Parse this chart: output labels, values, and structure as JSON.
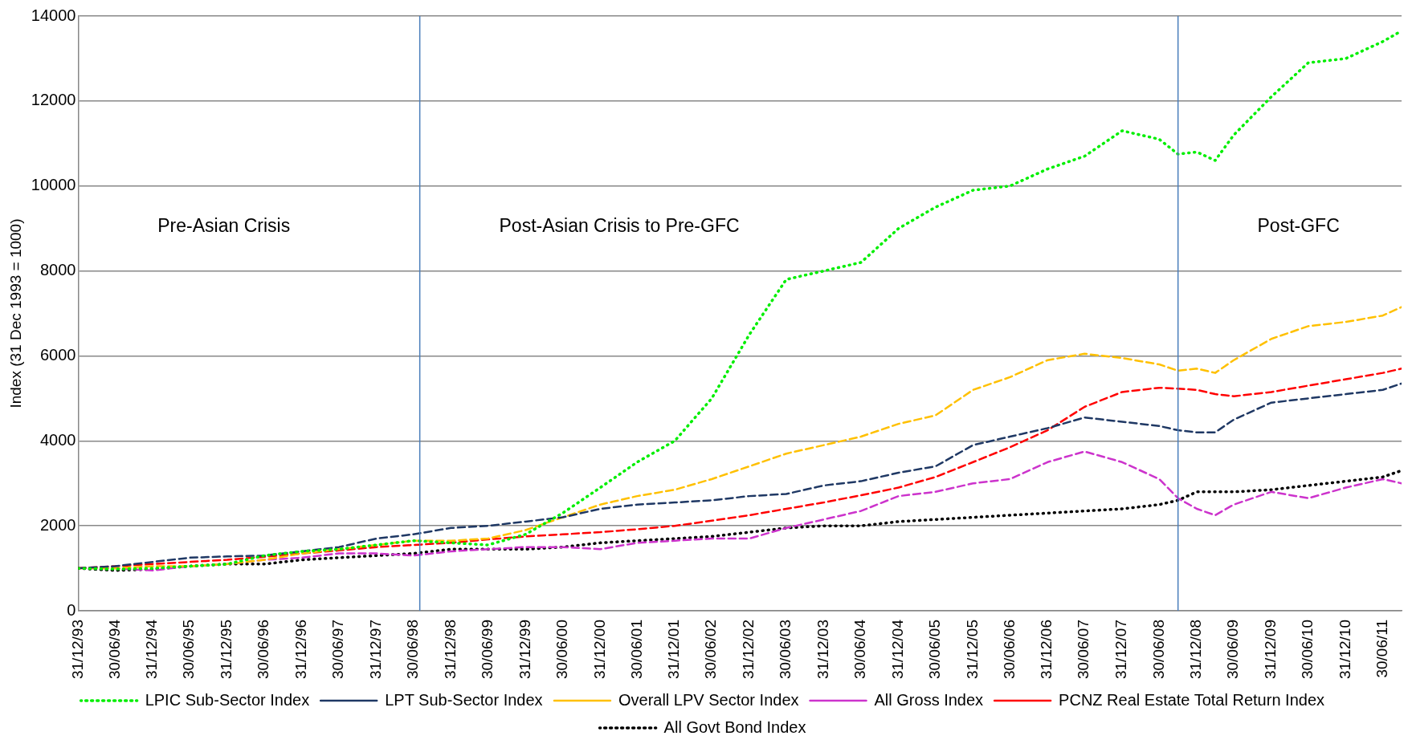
{
  "chart_data": {
    "type": "line",
    "ylabel": "Index (31 Dec 1993 = 1000)",
    "x": [
      "1993-12-31",
      "1994-06-30",
      "1994-12-31",
      "1995-06-30",
      "1995-12-31",
      "1996-06-30",
      "1996-12-31",
      "1997-06-30",
      "1997-12-31",
      "1998-06-30",
      "1998-12-31",
      "1999-06-30",
      "1999-12-31",
      "2000-06-30",
      "2000-12-31",
      "2001-06-30",
      "2001-12-31",
      "2002-06-30",
      "2002-12-31",
      "2003-06-30",
      "2003-12-31",
      "2004-06-30",
      "2004-12-31",
      "2005-06-30",
      "2005-12-31",
      "2006-06-30",
      "2006-12-31",
      "2007-06-30",
      "2007-12-31",
      "2008-06-30",
      "2008-09-30",
      "2008-12-31",
      "2009-03-31",
      "2009-06-30",
      "2009-12-31",
      "2010-06-30",
      "2010-12-31",
      "2011-06-30",
      "2011-09-30"
    ],
    "series": [
      {
        "name": "LPIC Sub-Sector Index",
        "color": "#00ee00",
        "line_style": "dotted",
        "values": [
          1000,
          980,
          1000,
          1050,
          1100,
          1300,
          1400,
          1450,
          1550,
          1650,
          1600,
          1550,
          1800,
          2300,
          2900,
          3500,
          4000,
          5000,
          6500,
          7800,
          8000,
          8200,
          9000,
          9500,
          9900,
          10000,
          10400,
          10700,
          11300,
          11100,
          10750,
          10800,
          10600,
          11200,
          12100,
          12900,
          13000,
          13400,
          13650
        ]
      },
      {
        "name": "LPT Sub-Sector Index",
        "color": "#1f3864",
        "line_style": "dashed",
        "values": [
          1000,
          1050,
          1150,
          1250,
          1280,
          1300,
          1400,
          1500,
          1700,
          1800,
          1950,
          2000,
          2100,
          2200,
          2400,
          2500,
          2550,
          2600,
          2700,
          2750,
          2950,
          3050,
          3250,
          3400,
          3900,
          4100,
          4300,
          4550,
          4450,
          4350,
          4250,
          4200,
          4200,
          4500,
          4900,
          5000,
          5100,
          5200,
          5350
        ]
      },
      {
        "name": "Overall LPV Sector Index",
        "color": "#ffc000",
        "line_style": "dashed",
        "values": [
          1000,
          1000,
          1050,
          1050,
          1100,
          1200,
          1350,
          1450,
          1550,
          1650,
          1650,
          1700,
          1900,
          2200,
          2500,
          2700,
          2850,
          3100,
          3400,
          3700,
          3900,
          4100,
          4400,
          4600,
          5200,
          5500,
          5900,
          6050,
          5950,
          5800,
          5650,
          5700,
          5600,
          5900,
          6400,
          6700,
          6800,
          6950,
          7150
        ]
      },
      {
        "name": "All Gross Index",
        "color": "#cc33cc",
        "line_style": "dashed",
        "values": [
          1000,
          1000,
          950,
          1050,
          1100,
          1200,
          1250,
          1350,
          1350,
          1300,
          1400,
          1450,
          1500,
          1500,
          1450,
          1600,
          1650,
          1700,
          1700,
          1950,
          2150,
          2350,
          2700,
          2800,
          3000,
          3100,
          3500,
          3750,
          3500,
          3100,
          2650,
          2400,
          2250,
          2500,
          2800,
          2650,
          2900,
          3100,
          3000
        ]
      },
      {
        "name": "PCNZ Real Estate Total Return Index",
        "color": "#ff0000",
        "line_style": "dashed",
        "values": [
          1000,
          1050,
          1100,
          1150,
          1200,
          1270,
          1350,
          1420,
          1500,
          1550,
          1600,
          1680,
          1750,
          1800,
          1850,
          1920,
          2000,
          2120,
          2250,
          2400,
          2550,
          2720,
          2900,
          3150,
          3500,
          3850,
          4250,
          4800,
          5150,
          5250,
          5230,
          5200,
          5100,
          5050,
          5150,
          5300,
          5450,
          5600,
          5700
        ]
      },
      {
        "name": "All Govt Bond Index",
        "color": "#000000",
        "line_style": "dotted",
        "values": [
          1000,
          950,
          980,
          1050,
          1100,
          1100,
          1200,
          1250,
          1300,
          1350,
          1450,
          1450,
          1450,
          1500,
          1600,
          1650,
          1700,
          1750,
          1850,
          1950,
          2000,
          2000,
          2100,
          2150,
          2200,
          2250,
          2300,
          2350,
          2400,
          2500,
          2600,
          2800,
          2800,
          2800,
          2850,
          2950,
          3050,
          3150,
          3300
        ]
      }
    ],
    "xlim": [
      "1993-12-31",
      "2011-09-30"
    ],
    "xticks": [
      {
        "value": "1993-12-31",
        "label": "31/12/93"
      },
      {
        "value": "1994-06-30",
        "label": "30/06/94"
      },
      {
        "value": "1994-12-31",
        "label": "31/12/94"
      },
      {
        "value": "1995-06-30",
        "label": "30/06/95"
      },
      {
        "value": "1995-12-31",
        "label": "31/12/95"
      },
      {
        "value": "1996-06-30",
        "label": "30/06/96"
      },
      {
        "value": "1996-12-31",
        "label": "31/12/96"
      },
      {
        "value": "1997-06-30",
        "label": "30/06/97"
      },
      {
        "value": "1997-12-31",
        "label": "31/12/97"
      },
      {
        "value": "1998-06-30",
        "label": "30/06/98"
      },
      {
        "value": "1998-12-31",
        "label": "31/12/98"
      },
      {
        "value": "1999-06-30",
        "label": "30/06/99"
      },
      {
        "value": "1999-12-31",
        "label": "31/12/99"
      },
      {
        "value": "2000-06-30",
        "label": "30/06/00"
      },
      {
        "value": "2000-12-31",
        "label": "31/12/00"
      },
      {
        "value": "2001-06-30",
        "label": "30/06/01"
      },
      {
        "value": "2001-12-31",
        "label": "31/12/01"
      },
      {
        "value": "2002-06-30",
        "label": "30/06/02"
      },
      {
        "value": "2002-12-31",
        "label": "31/12/02"
      },
      {
        "value": "2003-06-30",
        "label": "30/06/03"
      },
      {
        "value": "2003-12-31",
        "label": "31/12/03"
      },
      {
        "value": "2004-06-30",
        "label": "30/06/04"
      },
      {
        "value": "2004-12-31",
        "label": "31/12/04"
      },
      {
        "value": "2005-06-30",
        "label": "30/06/05"
      },
      {
        "value": "2005-12-31",
        "label": "31/12/05"
      },
      {
        "value": "2006-06-30",
        "label": "30/06/06"
      },
      {
        "value": "2006-12-31",
        "label": "31/12/06"
      },
      {
        "value": "2007-06-30",
        "label": "30/06/07"
      },
      {
        "value": "2007-12-31",
        "label": "31/12/07"
      },
      {
        "value": "2008-06-30",
        "label": "30/06/08"
      },
      {
        "value": "2008-12-31",
        "label": "31/12/08"
      },
      {
        "value": "2009-06-30",
        "label": "30/06/09"
      },
      {
        "value": "2009-12-31",
        "label": "31/12/09"
      },
      {
        "value": "2010-06-30",
        "label": "30/06/10"
      },
      {
        "value": "2010-12-31",
        "label": "31/12/10"
      },
      {
        "value": "2011-06-30",
        "label": "30/06/11"
      }
    ],
    "ylim": [
      0,
      14000
    ],
    "yticks": [
      0,
      2000,
      4000,
      6000,
      8000,
      10000,
      12000,
      14000
    ],
    "ref_lines": [
      {
        "axis": "x",
        "value": "1998-07-31",
        "color": "#4a7ebb"
      },
      {
        "axis": "x",
        "value": "2008-09-30",
        "color": "#4a7ebb"
      }
    ],
    "annotations": [
      "Pre-Asian Crisis",
      "Post-Asian Crisis to Pre-GFC",
      "Post-GFC"
    ],
    "grid": "y",
    "legend": "bottom",
    "marker": "none"
  }
}
